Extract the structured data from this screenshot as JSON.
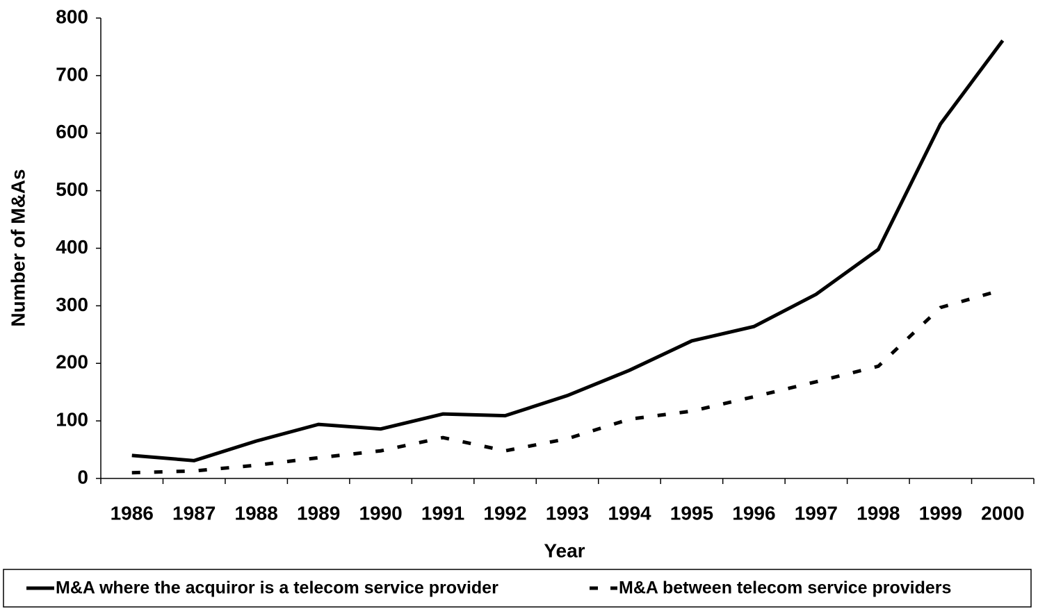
{
  "chart_data": {
    "type": "line",
    "x_label": "Year",
    "y_label": "Number of M&As",
    "categories": [
      "1986",
      "1987",
      "1988",
      "1989",
      "1990",
      "1991",
      "1992",
      "1993",
      "1994",
      "1995",
      "1996",
      "1997",
      "1998",
      "1999",
      "2000"
    ],
    "series": [
      {
        "name": "M&A where the acquiror is a telecom service provider",
        "color": "#000000",
        "dash": "solid",
        "values": [
          40,
          31,
          65,
          94,
          86,
          112,
          109,
          144,
          188,
          239,
          264,
          320,
          398,
          616,
          761
        ]
      },
      {
        "name": "M&A between telecom service providers",
        "color": "#000000",
        "dash": "dashed",
        "values": [
          10,
          13,
          23,
          36,
          48,
          71,
          48,
          69,
          103,
          117,
          142,
          168,
          195,
          297,
          328
        ]
      }
    ],
    "ylim": [
      0,
      800
    ],
    "yticks": [
      0,
      100,
      200,
      300,
      400,
      500,
      600,
      700,
      800
    ],
    "grid": false,
    "legend": "bottom"
  }
}
